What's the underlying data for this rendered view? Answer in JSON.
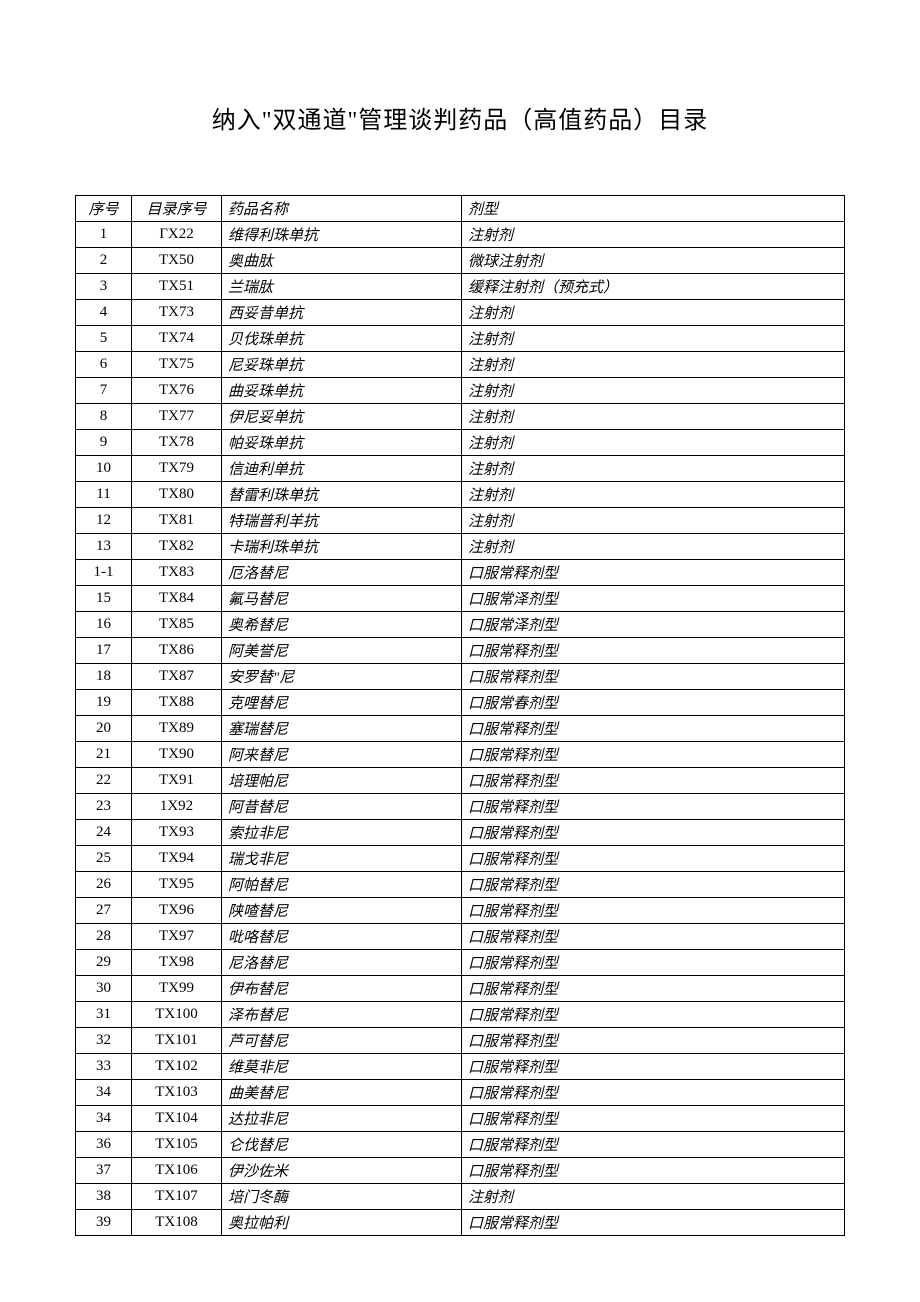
{
  "title": "纳入\"双通道\"管理谈判药品（高值药品）目录",
  "headers": {
    "seq": "序号",
    "catalog": "目录序号",
    "name": "药品名称",
    "form": "剂型"
  },
  "rows": [
    {
      "seq": "1",
      "catalog": "ΓX22",
      "name": "维得利珠单抗",
      "form": "注射剂"
    },
    {
      "seq": "2",
      "catalog": "TX50",
      "name": "奥曲肽",
      "form": "微球注射剂"
    },
    {
      "seq": "3",
      "catalog": "TX51",
      "name": "兰瑞肽",
      "form": "缓释注射剂（预充式）"
    },
    {
      "seq": "4",
      "catalog": "TX73",
      "name": "西妥昔单抗",
      "form": "注射剂"
    },
    {
      "seq": "5",
      "catalog": "TX74",
      "name": "贝伐珠单抗",
      "form": "注射剂"
    },
    {
      "seq": "6",
      "catalog": "TX75",
      "name": "尼妥珠单抗",
      "form": "注射剂"
    },
    {
      "seq": "7",
      "catalog": "TX76",
      "name": "曲妥珠单抗",
      "form": "注射剂"
    },
    {
      "seq": "8",
      "catalog": "TX77",
      "name": "伊尼妥单抗",
      "form": "注射剂"
    },
    {
      "seq": "9",
      "catalog": "TX78",
      "name": "帕妥珠单抗",
      "form": "注射剂"
    },
    {
      "seq": "10",
      "catalog": "TX79",
      "name": "信迪利单抗",
      "form": "注射剂"
    },
    {
      "seq": "11",
      "catalog": "TX80",
      "name": "替雷利珠单抗",
      "form": "注射剂"
    },
    {
      "seq": "12",
      "catalog": "TX81",
      "name": "特瑞普利羊抗",
      "form": "注射剂"
    },
    {
      "seq": "13",
      "catalog": "TX82",
      "name": "卡瑞利珠单抗",
      "form": "注射剂"
    },
    {
      "seq": "1-1",
      "catalog": "TX83",
      "name": "厄洛替尼",
      "form": "口服常释剂型"
    },
    {
      "seq": "15",
      "catalog": "TX84",
      "name": "氟马替尼",
      "form": "口服常泽剂型"
    },
    {
      "seq": "16",
      "catalog": "TX85",
      "name": "奥希替尼",
      "form": "口服常泽剂型"
    },
    {
      "seq": "17",
      "catalog": "TX86",
      "name": "阿美誉尼",
      "form": "口服常释剂型"
    },
    {
      "seq": "18",
      "catalog": "TX87",
      "name": "安罗替\"尼",
      "form": "口服常释剂型"
    },
    {
      "seq": "19",
      "catalog": "TX88",
      "name": "克哩替尼",
      "form": "口服常春剂型"
    },
    {
      "seq": "20",
      "catalog": "TX89",
      "name": "塞瑞替尼",
      "form": "口服常释剂型"
    },
    {
      "seq": "21",
      "catalog": "TX90",
      "name": "阿来替尼",
      "form": "口服常释剂型"
    },
    {
      "seq": "22",
      "catalog": "TX91",
      "name": "培理帕尼",
      "form": "口服常释剂型"
    },
    {
      "seq": "23",
      "catalog": "1X92",
      "name": "阿昔替尼",
      "form": "口服常释剂型"
    },
    {
      "seq": "24",
      "catalog": "TX93",
      "name": "索拉非尼",
      "form": "口服常释剂型"
    },
    {
      "seq": "25",
      "catalog": "TX94",
      "name": "瑞戈非尼",
      "form": "口服常释剂型"
    },
    {
      "seq": "26",
      "catalog": "TX95",
      "name": "阿帕替尼",
      "form": "口服常释剂型"
    },
    {
      "seq": "27",
      "catalog": "TX96",
      "name": "陕喳替尼",
      "form": "口服常释剂型"
    },
    {
      "seq": "28",
      "catalog": "TX97",
      "name": "吡咯替尼",
      "form": "口服常释剂型"
    },
    {
      "seq": "29",
      "catalog": "TX98",
      "name": "尼洛替尼",
      "form": "口服常释剂型"
    },
    {
      "seq": "30",
      "catalog": "TX99",
      "name": "伊布替尼",
      "form": "口服常释剂型"
    },
    {
      "seq": "31",
      "catalog": "TX100",
      "name": "泽布替尼",
      "form": "口服常释剂型"
    },
    {
      "seq": "32",
      "catalog": "TX101",
      "name": "芦可替尼",
      "form": "口服常释剂型"
    },
    {
      "seq": "33",
      "catalog": "TX102",
      "name": "维莫非尼",
      "form": "口服常释剂型"
    },
    {
      "seq": "34",
      "catalog": "TX103",
      "name": "曲美替尼",
      "form": "口服常释剂型"
    },
    {
      "seq": "34",
      "catalog": "TX104",
      "name": "达拉非尼",
      "form": "口服常释剂型"
    },
    {
      "seq": "36",
      "catalog": "TX105",
      "name": "仑伐替尼",
      "form": "口服常释剂型"
    },
    {
      "seq": "37",
      "catalog": "TX106",
      "name": "伊沙佐米",
      "form": "口服常释剂型"
    },
    {
      "seq": "38",
      "catalog": "TX107",
      "name": "培门冬酶",
      "form": "注射剂"
    },
    {
      "seq": "39",
      "catalog": "TX108",
      "name": "奥拉帕利",
      "form": "口服常释剂型"
    }
  ]
}
